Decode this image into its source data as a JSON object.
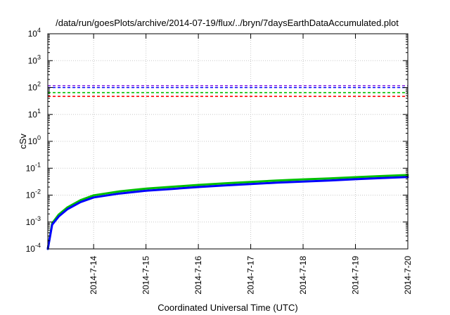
{
  "chart_data": {
    "type": "line",
    "title": "/data/run/goesPlots/archive/2014-07-19/flux/../bryn/7daysEarthDataAccumulated.plot",
    "xlabel": "Coordinated Universal Time (UTC)",
    "ylabel": "cSv",
    "y_scale": "log",
    "ylim": [
      0.0001,
      10000
    ],
    "xlim": [
      "2014-07-13 03:00",
      "2014-07-20 00:00"
    ],
    "x_tick_labels": [
      "2014-7-14",
      "2014-7-15",
      "2014-7-16",
      "2014-7-17",
      "2014-7-18",
      "2014-7-19",
      "2014-7-20"
    ],
    "y_ticks": [
      {
        "base": "10",
        "exp": "-4",
        "value": 0.0001
      },
      {
        "base": "10",
        "exp": "-3",
        "value": 0.001
      },
      {
        "base": "10",
        "exp": "-2",
        "value": 0.01
      },
      {
        "base": "10",
        "exp": "-1",
        "value": 0.1
      },
      {
        "base": "10",
        "exp": "0",
        "value": 1
      },
      {
        "base": "10",
        "exp": "1",
        "value": 10
      },
      {
        "base": "10",
        "exp": "2",
        "value": 100
      },
      {
        "base": "10",
        "exp": "3",
        "value": 1000
      },
      {
        "base": "10",
        "exp": "4",
        "value": 10000
      }
    ],
    "grid": true,
    "thresholds": [
      {
        "color": "#8a2be2",
        "value": 118
      },
      {
        "color": "#0000ff",
        "value": 100
      },
      {
        "color": "#00c000",
        "value": 65
      },
      {
        "color": "#ff0000",
        "value": 47
      }
    ],
    "series": [
      {
        "color": "#00c000",
        "x": [
          "2014-07-13 03:00",
          "2014-07-13 05:00",
          "2014-07-13 08:00",
          "2014-07-13 12:00",
          "2014-07-13 18:00",
          "2014-07-14 00:00",
          "2014-07-14 12:00",
          "2014-07-15 00:00",
          "2014-07-15 12:00",
          "2014-07-16 00:00",
          "2014-07-16 12:00",
          "2014-07-17 00:00",
          "2014-07-17 12:00",
          "2014-07-18 00:00",
          "2014-07-18 12:00",
          "2014-07-19 00:00",
          "2014-07-19 12:00",
          "2014-07-20 00:00"
        ],
        "y": [
          0.0001,
          0.0009,
          0.0019,
          0.0035,
          0.0065,
          0.0098,
          0.0138,
          0.0175,
          0.0205,
          0.024,
          0.0275,
          0.031,
          0.035,
          0.0385,
          0.042,
          0.0465,
          0.051,
          0.056
        ]
      },
      {
        "color": "#0000ff",
        "x": [
          "2014-07-13 03:00",
          "2014-07-13 05:00",
          "2014-07-13 08:00",
          "2014-07-13 12:00",
          "2014-07-13 18:00",
          "2014-07-14 00:00",
          "2014-07-14 12:00",
          "2014-07-15 00:00",
          "2014-07-15 12:00",
          "2014-07-16 00:00",
          "2014-07-16 12:00",
          "2014-07-17 00:00",
          "2014-07-17 12:00",
          "2014-07-18 00:00",
          "2014-07-18 12:00",
          "2014-07-19 00:00",
          "2014-07-19 12:00",
          "2014-07-20 00:00"
        ],
        "y": [
          0.0001,
          0.0008,
          0.0016,
          0.003,
          0.0055,
          0.0082,
          0.0115,
          0.0145,
          0.017,
          0.02,
          0.0228,
          0.0258,
          0.029,
          0.032,
          0.035,
          0.039,
          0.043,
          0.047
        ]
      }
    ]
  }
}
